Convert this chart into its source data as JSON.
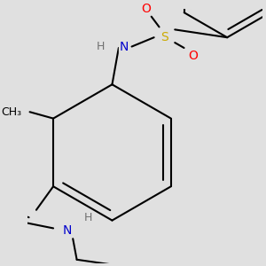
{
  "background_color": "#e0e0e0",
  "line_color": "#000000",
  "bond_width": 1.5,
  "atom_colors": {
    "N": "#0000cc",
    "O": "#ff0000",
    "S": "#ccaa00",
    "H": "#707070",
    "C": "#000000"
  },
  "font_size": 10,
  "font_size_h": 9
}
